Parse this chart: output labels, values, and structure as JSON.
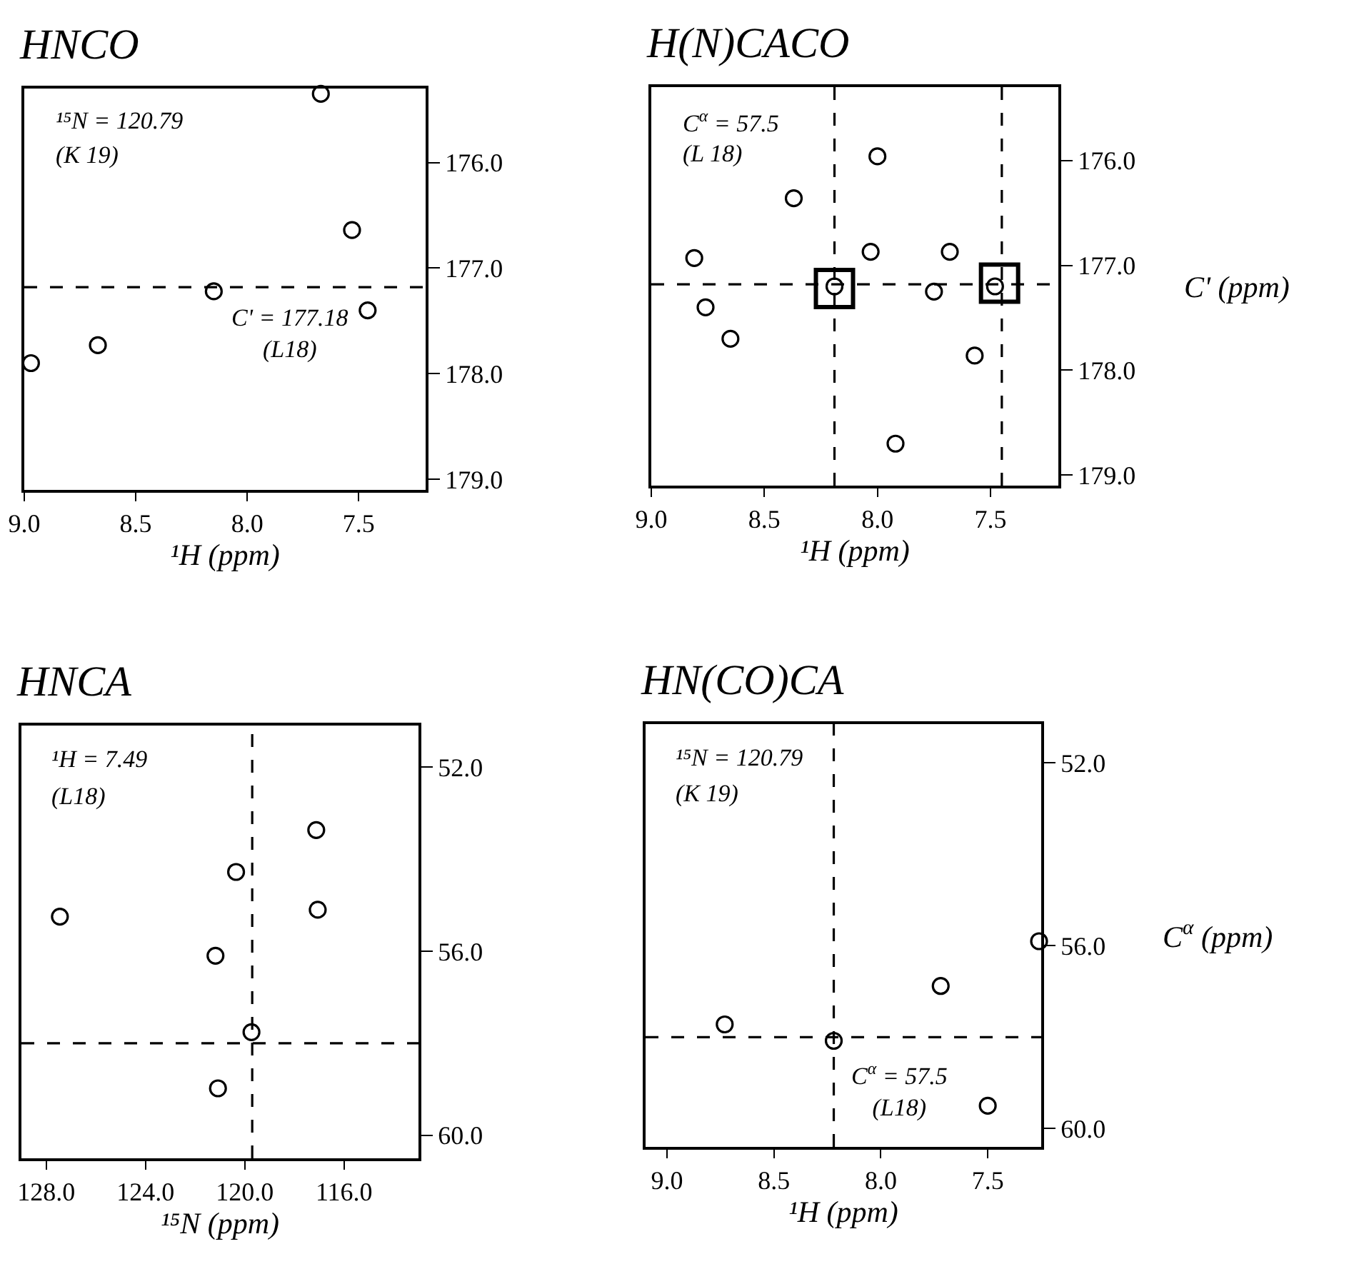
{
  "chart_data": [
    {
      "type": "scatter",
      "title": "HNCO",
      "xlabel": "¹H (ppm)",
      "xlim": [
        9.0,
        7.2
      ],
      "ylim": [
        179.1,
        175.3
      ],
      "xticks": [
        {
          "value": 9,
          "label": "9.0"
        },
        {
          "value": 8.5,
          "label": "8.5"
        },
        {
          "value": 8,
          "label": "8.0"
        },
        {
          "value": 7.5,
          "label": "7.5"
        }
      ],
      "yticks": [
        {
          "value": 176,
          "label": "176.0"
        },
        {
          "value": 177,
          "label": "177.0"
        },
        {
          "value": 178,
          "label": "178.0"
        },
        {
          "value": 179,
          "label": "179.0"
        }
      ],
      "series": [
        {
          "color": "#000000",
          "x": [
            7.67,
            7.53,
            8.15,
            7.46,
            8.67,
            8.97
          ],
          "values": [
            175.35,
            176.64,
            177.22,
            177.4,
            177.73,
            177.9
          ]
        }
      ],
      "marker": "circle",
      "grid": false,
      "ref_lines": [
        {
          "axis": "y",
          "value": 177.18,
          "line_style": "dashed",
          "color": "#000000"
        }
      ],
      "annotations": [
        "¹⁵N = 120.79",
        "(K 19)",
        {
          "text": "C' = 177.18\n(L18)",
          "x": 8.15,
          "y": 177.18
        }
      ]
    },
    {
      "type": "scatter",
      "title": "H(N)CACO",
      "xlabel": "¹H (ppm)",
      "ylabel": "C' (ppm)",
      "xlim": [
        9.0,
        7.2
      ],
      "ylim": [
        179.1,
        175.3
      ],
      "xticks": [
        {
          "value": 9,
          "label": "9.0"
        },
        {
          "value": 8.5,
          "label": "8.5"
        },
        {
          "value": 8,
          "label": "8.0"
        },
        {
          "value": 7.5,
          "label": "7.5"
        }
      ],
      "yticks": [
        {
          "value": 176,
          "label": "176.0"
        },
        {
          "value": 177,
          "label": "177.0"
        },
        {
          "value": 178,
          "label": "178.0"
        },
        {
          "value": 179,
          "label": "179.0"
        }
      ],
      "series": [
        {
          "color": "#000000",
          "marker": "circle",
          "x": [
            8.81,
            8.37,
            8.0,
            8.03,
            7.68,
            8.76,
            8.65,
            8.19,
            7.75,
            7.48,
            7.57,
            7.92
          ],
          "values": [
            176.93,
            176.36,
            175.96,
            176.87,
            176.87,
            177.4,
            177.7,
            177.2,
            177.25,
            177.2,
            177.86,
            178.7
          ]
        },
        {
          "color": "#000000",
          "marker": "square",
          "x": [
            8.19,
            7.46
          ],
          "values": [
            177.22,
            177.17
          ]
        }
      ],
      "grid": false,
      "ref_lines": [
        {
          "axis": "y",
          "value": 177.18,
          "line_style": "dashed",
          "color": "#000000"
        },
        {
          "axis": "x",
          "value": 8.19,
          "line_style": "dashed",
          "color": "#000000"
        },
        {
          "axis": "x",
          "value": 7.45,
          "line_style": "dashed",
          "color": "#000000"
        }
      ],
      "annotations": [
        "C$^{α}$ = 57.5",
        "(L 18)"
      ]
    },
    {
      "type": "scatter",
      "title": "HNCA",
      "xlabel": "¹⁵N (ppm)",
      "xlim": [
        129,
        113
      ],
      "ylim": [
        60.5,
        51.1
      ],
      "xticks": [
        {
          "value": 128,
          "label": "128.0"
        },
        {
          "value": 124,
          "label": "124.0"
        },
        {
          "value": 120,
          "label": "120.0"
        },
        {
          "value": 116,
          "label": "116.0"
        }
      ],
      "yticks": [
        {
          "value": 52,
          "label": "52.0"
        },
        {
          "value": 56,
          "label": "56.0"
        },
        {
          "value": 60,
          "label": "60.0"
        }
      ],
      "series": [
        {
          "color": "#000000",
          "x": [
            127.45,
            120.35,
            117.12,
            117.06,
            121.18,
            119.73,
            121.08
          ],
          "values": [
            55.25,
            54.28,
            53.37,
            55.1,
            56.1,
            57.76,
            58.98
          ]
        }
      ],
      "marker": "circle",
      "grid": false,
      "ref_lines": [
        {
          "axis": "y",
          "value": 58.0,
          "line_style": "dashed",
          "color": "#000000"
        },
        {
          "axis": "x",
          "value": 119.7,
          "line_style": "dashed",
          "color": "#000000"
        }
      ],
      "annotations": [
        "¹H = 7.49",
        "(L18)"
      ]
    },
    {
      "type": "scatter",
      "title": "HN(CO)CA",
      "xlabel": "¹H (ppm)",
      "ylabel": "C$^{α}$ (ppm)",
      "xlim": [
        9.1,
        7.25
      ],
      "ylim": [
        60.4,
        51.15
      ],
      "xticks": [
        {
          "value": 9,
          "label": "9.0"
        },
        {
          "value": 8.5,
          "label": "8.5"
        },
        {
          "value": 8,
          "label": "8.0"
        },
        {
          "value": 7.5,
          "label": "7.5"
        }
      ],
      "yticks": [
        {
          "value": 52,
          "label": "52.0"
        },
        {
          "value": 56,
          "label": "56.0"
        },
        {
          "value": 60,
          "label": "60.0"
        }
      ],
      "series": [
        {
          "color": "#000000",
          "x": [
            8.73,
            8.22,
            7.72,
            7.5,
            7.26
          ],
          "values": [
            57.72,
            58.08,
            56.88,
            59.5,
            55.9
          ]
        }
      ],
      "marker": "circle",
      "grid": false,
      "ref_lines": [
        {
          "axis": "y",
          "value": 58.0,
          "line_style": "dashed",
          "color": "#000000"
        },
        {
          "axis": "x",
          "value": 8.22,
          "line_style": "dashed",
          "color": "#000000"
        }
      ],
      "annotations": [
        "¹⁵N = 120.79",
        "(K 19)",
        {
          "text": "C$^{α}$ = 57.5\n(L18)",
          "x": 8.22,
          "y": 58.08
        }
      ]
    }
  ]
}
